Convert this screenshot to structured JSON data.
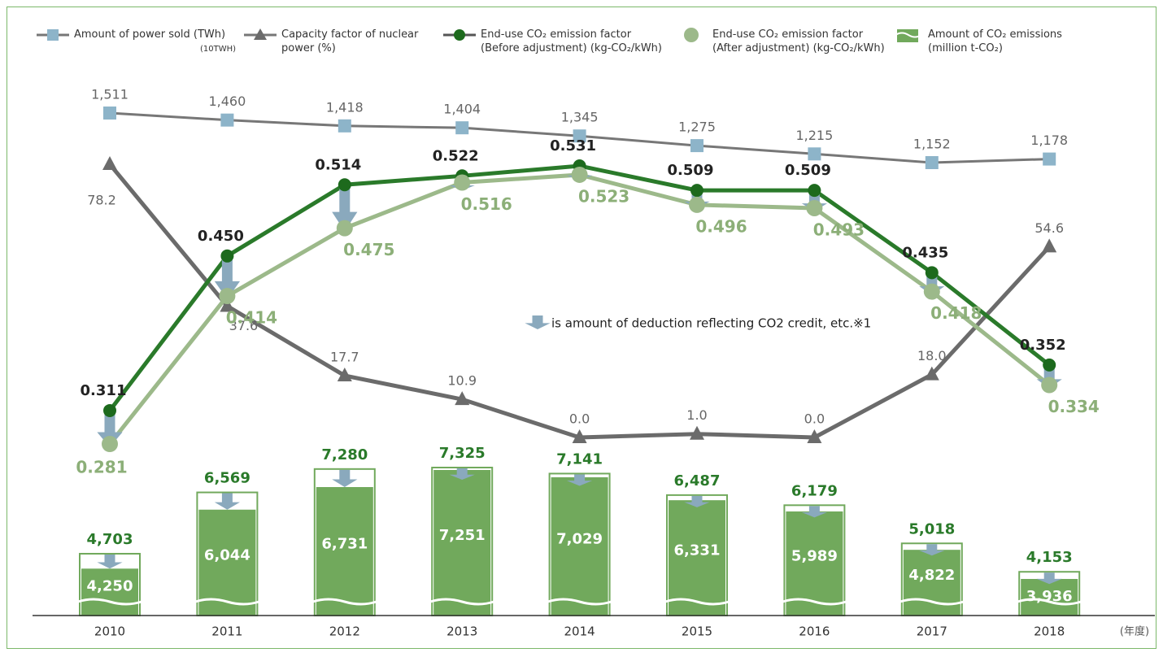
{
  "chart_data": {
    "type": "line",
    "categories": [
      "2010",
      "2011",
      "2012",
      "2013",
      "2014",
      "2015",
      "2016",
      "2017",
      "2018"
    ],
    "x_label": "(年度)",
    "unit_note": "(10TWH)",
    "annotation": "is amount of deduction reflecting CO2 credit, etc.※1",
    "series": [
      {
        "name": "Amount of power sold (TWh)",
        "color": "#8db4c9",
        "values": [
          1511,
          1460,
          1418,
          1404,
          1345,
          1275,
          1215,
          1152,
          1178
        ],
        "value_labels": [
          "1,511",
          "1,460",
          "1,418",
          "1,404",
          "1,345",
          "1,275",
          "1,215",
          "1,152",
          "1,178"
        ]
      },
      {
        "name": "Capacity factor of nuclear power (%)",
        "color": "#6b6b6b",
        "values": [
          78.2,
          37.6,
          17.7,
          10.9,
          0,
          1,
          0,
          18,
          54.6
        ],
        "value_labels": [
          "78.2",
          "37.6",
          "17.7",
          "10.9",
          "0.0",
          "1.0",
          "0.0",
          "18.0",
          "54.6"
        ]
      },
      {
        "name": "End-use CO₂ emission factor (Before adjustment) (kg-CO₂/kWh)",
        "color": "#2a7a2a",
        "values": [
          0.311,
          0.45,
          0.514,
          0.522,
          0.531,
          0.509,
          0.509,
          0.435,
          0.352
        ],
        "value_labels": [
          "0.311",
          "0.450",
          "0.514",
          "0.522",
          "0.531",
          "0.509",
          "0.509",
          "0.435",
          "0.352"
        ]
      },
      {
        "name": "End-use CO₂ emission factor (After adjustment) (kg-CO₂/kWh)",
        "color": "#9cb98a",
        "values": [
          0.281,
          0.414,
          0.475,
          0.516,
          0.523,
          0.496,
          0.493,
          0.418,
          0.334
        ],
        "value_labels": [
          "0.281",
          "0.414",
          "0.475",
          "0.516",
          "0.523",
          "0.496",
          "0.493",
          "0.418",
          "0.334"
        ]
      }
    ],
    "bars": {
      "name": "Amount of CO₂ emissions (million t-CO₂)",
      "color": "#71a95c",
      "values": [
        4703,
        6569,
        7280,
        7325,
        7141,
        6487,
        6179,
        5018,
        4153
      ],
      "value_labels": [
        "4,703",
        "6,569",
        "7,280",
        "7,325",
        "7,141",
        "6,487",
        "6,179",
        "5,018",
        "4,153"
      ],
      "adjusted_values": [
        4250,
        6044,
        6731,
        7251,
        7029,
        6331,
        5989,
        4822,
        3936
      ],
      "adjusted_value_labels": [
        "4,250",
        "6,044",
        "6,731",
        "7,251",
        "7,029",
        "6,331",
        "5,989",
        "4,822",
        "3,936"
      ]
    }
  }
}
